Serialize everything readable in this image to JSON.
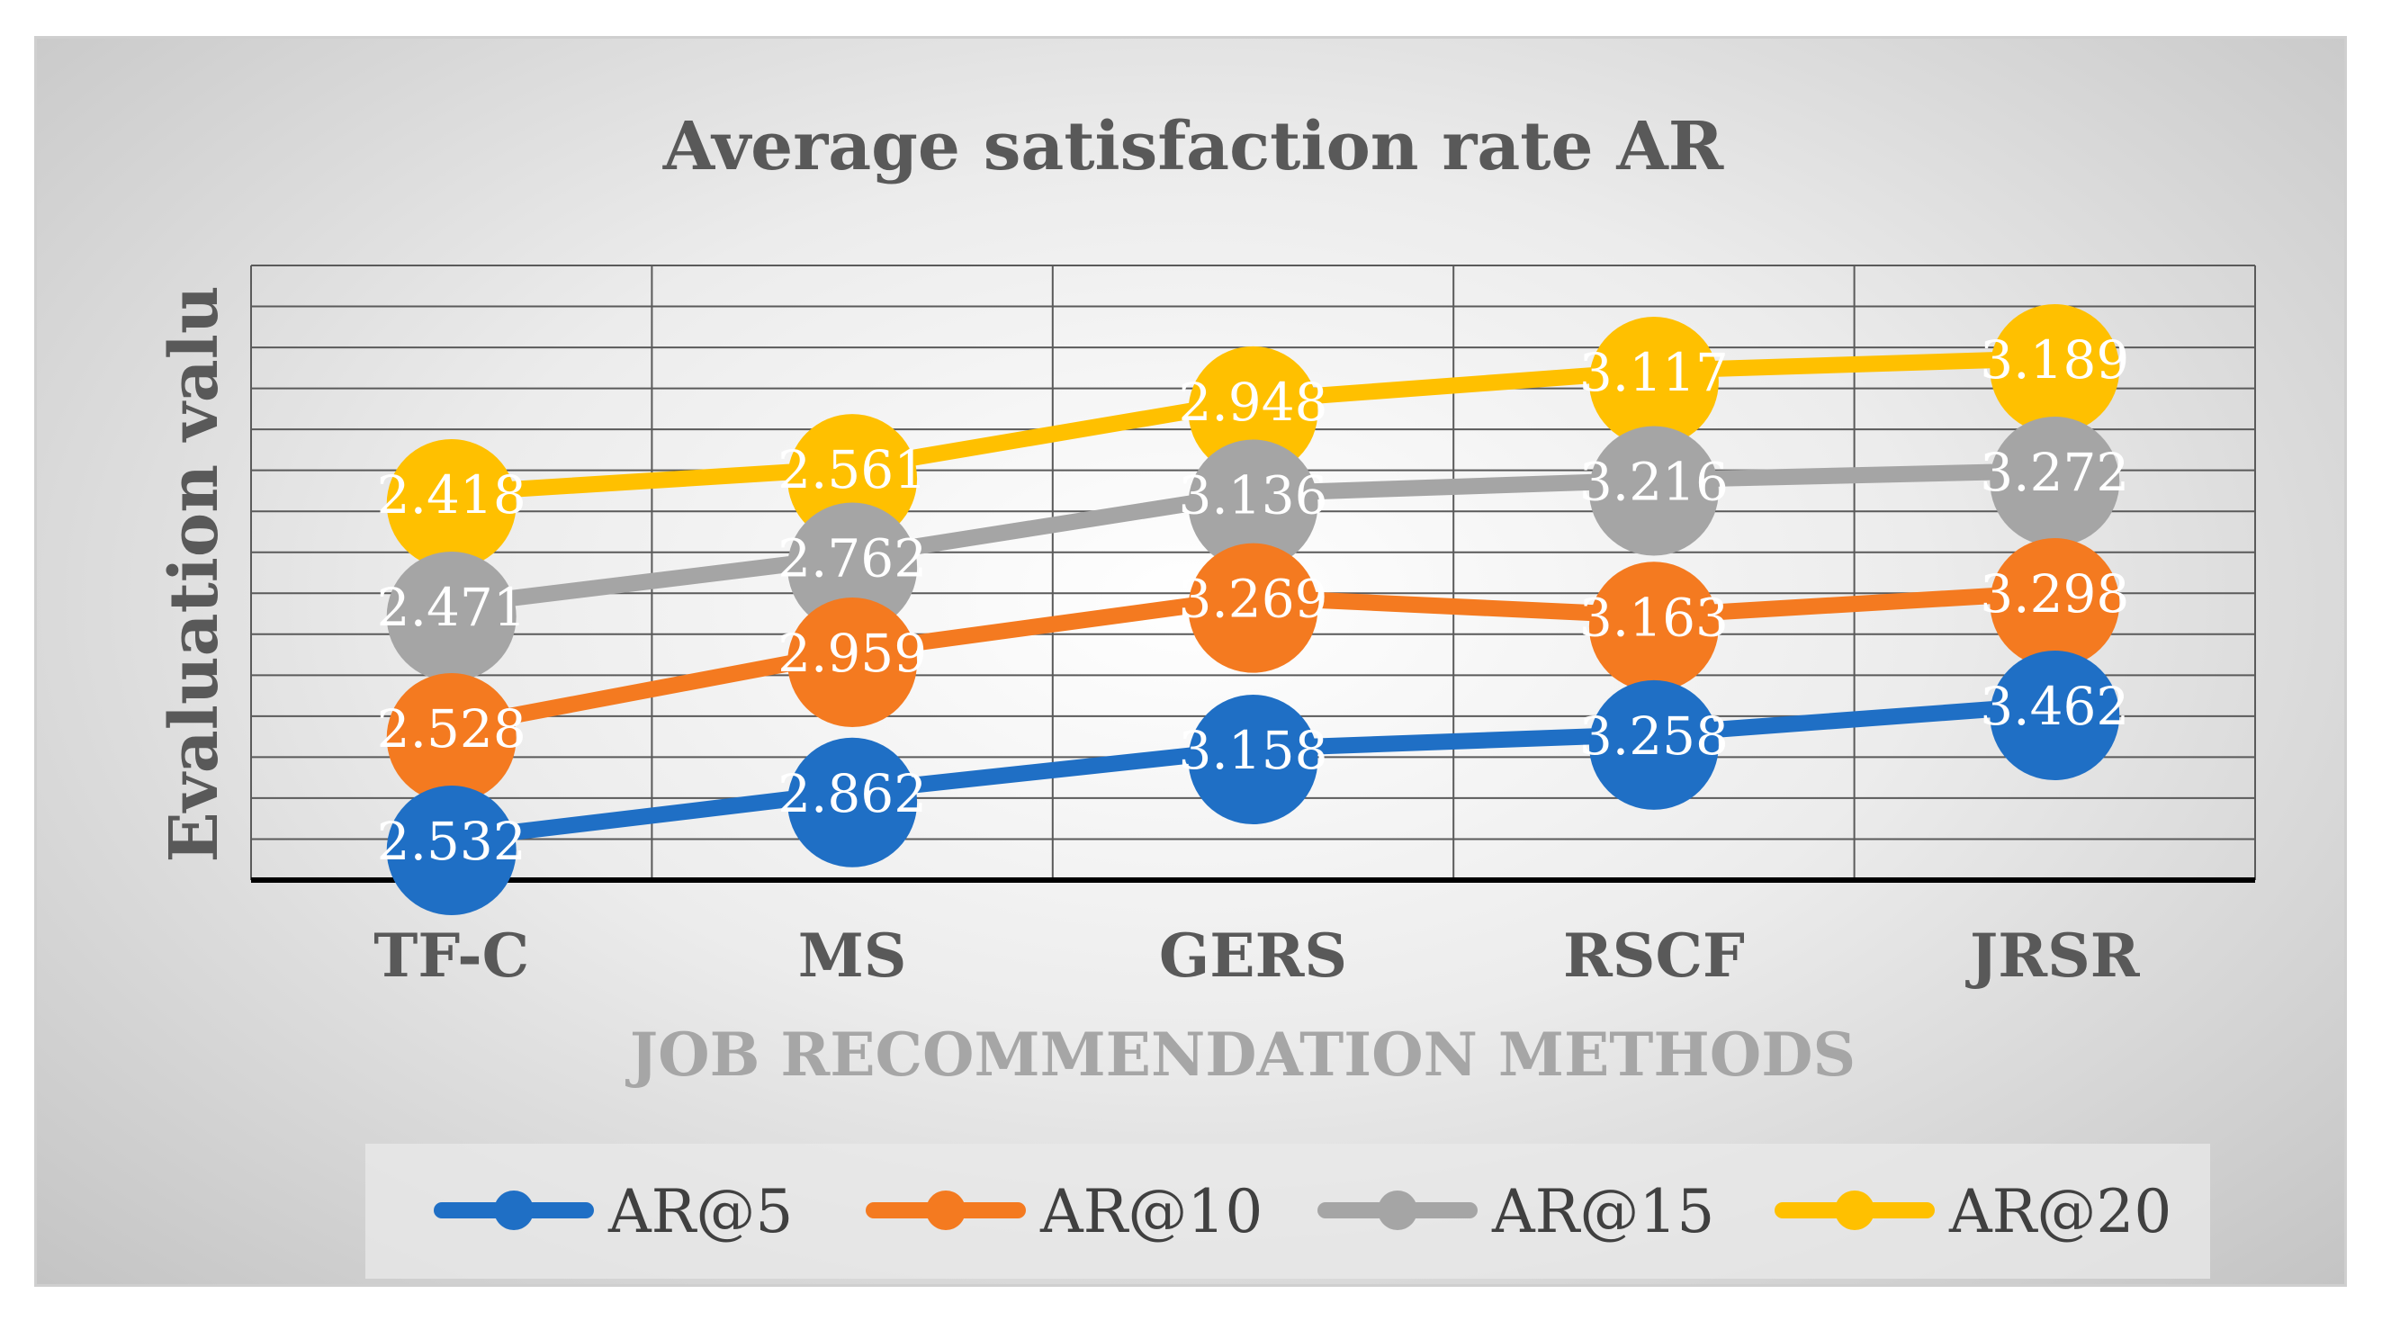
{
  "chart_data": {
    "type": "line",
    "title": "Average satisfaction rate AR",
    "xlabel": "JOB RECOMMENDATION METHODS",
    "ylabel": "Evaluation valu",
    "categories": [
      "TF-C",
      "MS",
      "GERS",
      "RSCF",
      "JRSR"
    ],
    "series": [
      {
        "name": "AR@5",
        "color": "#1f6fc5",
        "values": [
          2.532,
          2.862,
          3.158,
          3.258,
          3.462
        ]
      },
      {
        "name": "AR@10",
        "color": "#f47a20",
        "values": [
          2.528,
          2.959,
          3.269,
          3.163,
          3.298
        ]
      },
      {
        "name": "AR@15",
        "color": "#a5a5a5",
        "values": [
          2.471,
          2.762,
          3.136,
          3.216,
          3.272
        ]
      },
      {
        "name": "AR@20",
        "color": "#ffc000",
        "values": [
          2.418,
          2.561,
          2.948,
          3.117,
          3.189
        ]
      }
    ],
    "grid": true,
    "legend_position": "bottom"
  }
}
